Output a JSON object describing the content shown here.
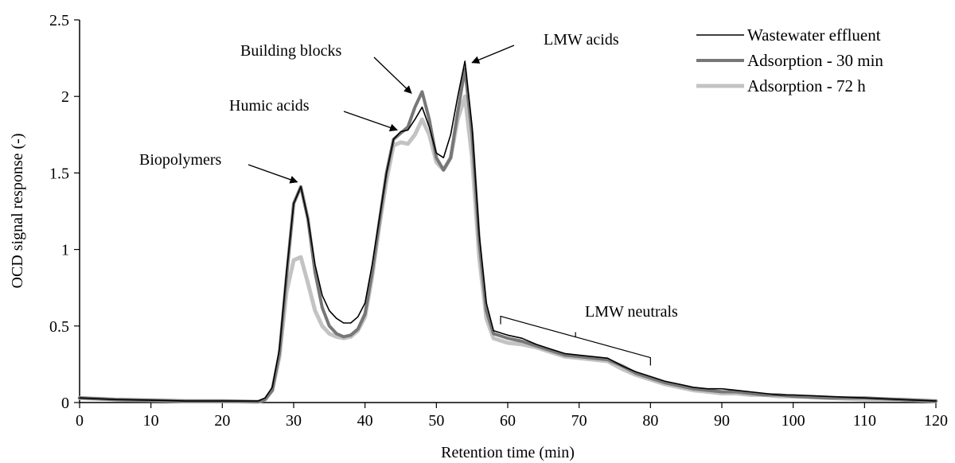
{
  "chart_data": {
    "type": "line",
    "title": "",
    "xlabel": "Retention time (min)",
    "ylabel": "OCD signal response (-)",
    "xlim": [
      0,
      120
    ],
    "ylim": [
      0,
      2.5
    ],
    "xticks": [
      "0",
      "10",
      "20",
      "30",
      "40",
      "50",
      "60",
      "70",
      "80",
      "90",
      "100",
      "110",
      "120"
    ],
    "yticks": [
      "0",
      "0.5",
      "1",
      "1.5",
      "2",
      "2.5"
    ],
    "grid": false,
    "legend_position": "top-right",
    "series": [
      {
        "name": "Wastewater effluent",
        "color": "#000000",
        "width": 1.6,
        "x": [
          0,
          5,
          10,
          15,
          20,
          25,
          26,
          27,
          28,
          29,
          30,
          31,
          32,
          33,
          34,
          35,
          36,
          37,
          38,
          39,
          40,
          41,
          42,
          43,
          44,
          45,
          46,
          47,
          48,
          49,
          50,
          51,
          52,
          53,
          54,
          55,
          56,
          57,
          58,
          60,
          62,
          64,
          66,
          68,
          70,
          72,
          74,
          76,
          78,
          80,
          82,
          84,
          86,
          88,
          90,
          92,
          94,
          96,
          98,
          100,
          105,
          110,
          115,
          120
        ],
        "y": [
          0.03,
          0.02,
          0.015,
          0.01,
          0.01,
          0.01,
          0.03,
          0.1,
          0.35,
          0.85,
          1.3,
          1.41,
          1.2,
          0.9,
          0.7,
          0.6,
          0.55,
          0.52,
          0.52,
          0.56,
          0.65,
          0.9,
          1.2,
          1.5,
          1.72,
          1.77,
          1.78,
          1.85,
          1.93,
          1.8,
          1.63,
          1.6,
          1.75,
          2.0,
          2.23,
          1.8,
          1.1,
          0.65,
          0.47,
          0.44,
          0.42,
          0.38,
          0.35,
          0.32,
          0.31,
          0.3,
          0.29,
          0.24,
          0.2,
          0.17,
          0.14,
          0.12,
          0.1,
          0.09,
          0.09,
          0.08,
          0.07,
          0.06,
          0.05,
          0.05,
          0.04,
          0.03,
          0.02,
          0.01
        ]
      },
      {
        "name": "Adsorption - 30 min",
        "color": "#777777",
        "width": 4,
        "x": [
          0,
          5,
          10,
          15,
          20,
          25,
          26,
          27,
          28,
          29,
          30,
          31,
          32,
          33,
          34,
          35,
          36,
          37,
          38,
          39,
          40,
          41,
          42,
          43,
          44,
          45,
          46,
          47,
          48,
          49,
          50,
          51,
          52,
          53,
          54,
          55,
          56,
          57,
          58,
          60,
          62,
          64,
          66,
          68,
          70,
          72,
          74,
          76,
          78,
          80,
          82,
          84,
          86,
          88,
          90,
          92,
          94,
          96,
          98,
          100,
          105,
          110,
          115,
          120
        ],
        "y": [
          0.03,
          0.02,
          0.015,
          0.01,
          0.01,
          0.005,
          0.02,
          0.08,
          0.32,
          0.82,
          1.3,
          1.41,
          1.2,
          0.85,
          0.62,
          0.5,
          0.45,
          0.43,
          0.44,
          0.48,
          0.58,
          0.85,
          1.18,
          1.5,
          1.72,
          1.76,
          1.8,
          1.93,
          2.03,
          1.85,
          1.6,
          1.52,
          1.6,
          1.9,
          2.18,
          1.75,
          1.05,
          0.6,
          0.45,
          0.42,
          0.4,
          0.37,
          0.34,
          0.31,
          0.3,
          0.29,
          0.28,
          0.24,
          0.19,
          0.16,
          0.13,
          0.11,
          0.09,
          0.08,
          0.07,
          0.07,
          0.06,
          0.05,
          0.05,
          0.04,
          0.03,
          0.03,
          0.02,
          0.01
        ]
      },
      {
        "name": "Adsorption - 72 h",
        "color": "#c3c3c3",
        "width": 5,
        "x": [
          0,
          5,
          10,
          15,
          20,
          25,
          26,
          27,
          28,
          29,
          30,
          31,
          32,
          33,
          34,
          35,
          36,
          37,
          38,
          39,
          40,
          41,
          42,
          43,
          44,
          45,
          46,
          47,
          48,
          49,
          50,
          51,
          52,
          53,
          54,
          55,
          56,
          57,
          58,
          60,
          62,
          64,
          66,
          68,
          70,
          72,
          74,
          76,
          78,
          80,
          82,
          84,
          86,
          88,
          90,
          92,
          94,
          96,
          98,
          100,
          105,
          110,
          115,
          120
        ],
        "y": [
          0.03,
          0.02,
          0.015,
          0.01,
          0.01,
          0.005,
          0.02,
          0.08,
          0.3,
          0.72,
          0.93,
          0.95,
          0.78,
          0.6,
          0.5,
          0.45,
          0.43,
          0.42,
          0.43,
          0.47,
          0.56,
          0.82,
          1.15,
          1.45,
          1.68,
          1.7,
          1.69,
          1.75,
          1.85,
          1.75,
          1.57,
          1.52,
          1.6,
          1.85,
          2.0,
          1.6,
          0.95,
          0.55,
          0.42,
          0.39,
          0.38,
          0.36,
          0.33,
          0.3,
          0.29,
          0.28,
          0.27,
          0.22,
          0.18,
          0.15,
          0.12,
          0.1,
          0.08,
          0.07,
          0.06,
          0.06,
          0.05,
          0.05,
          0.04,
          0.04,
          0.03,
          0.02,
          0.02,
          0.01
        ]
      }
    ],
    "annotations": [
      {
        "id": "biopolymers",
        "text": "Biopolymers",
        "arrow_to": [
          30.5,
          1.42
        ]
      },
      {
        "id": "humic",
        "text": "Humic acids",
        "arrow_to": [
          44.5,
          1.76
        ]
      },
      {
        "id": "building",
        "text": "Building blocks",
        "arrow_to": [
          46.5,
          2.0
        ]
      },
      {
        "id": "lmw_acids",
        "text": "LMW acids",
        "arrow_to": [
          55,
          2.2
        ]
      },
      {
        "id": "lmw_neutrals",
        "text": "LMW neutrals",
        "bracket_from": [
          59,
          0.47
        ],
        "bracket_to": [
          80,
          0.2
        ]
      }
    ]
  }
}
